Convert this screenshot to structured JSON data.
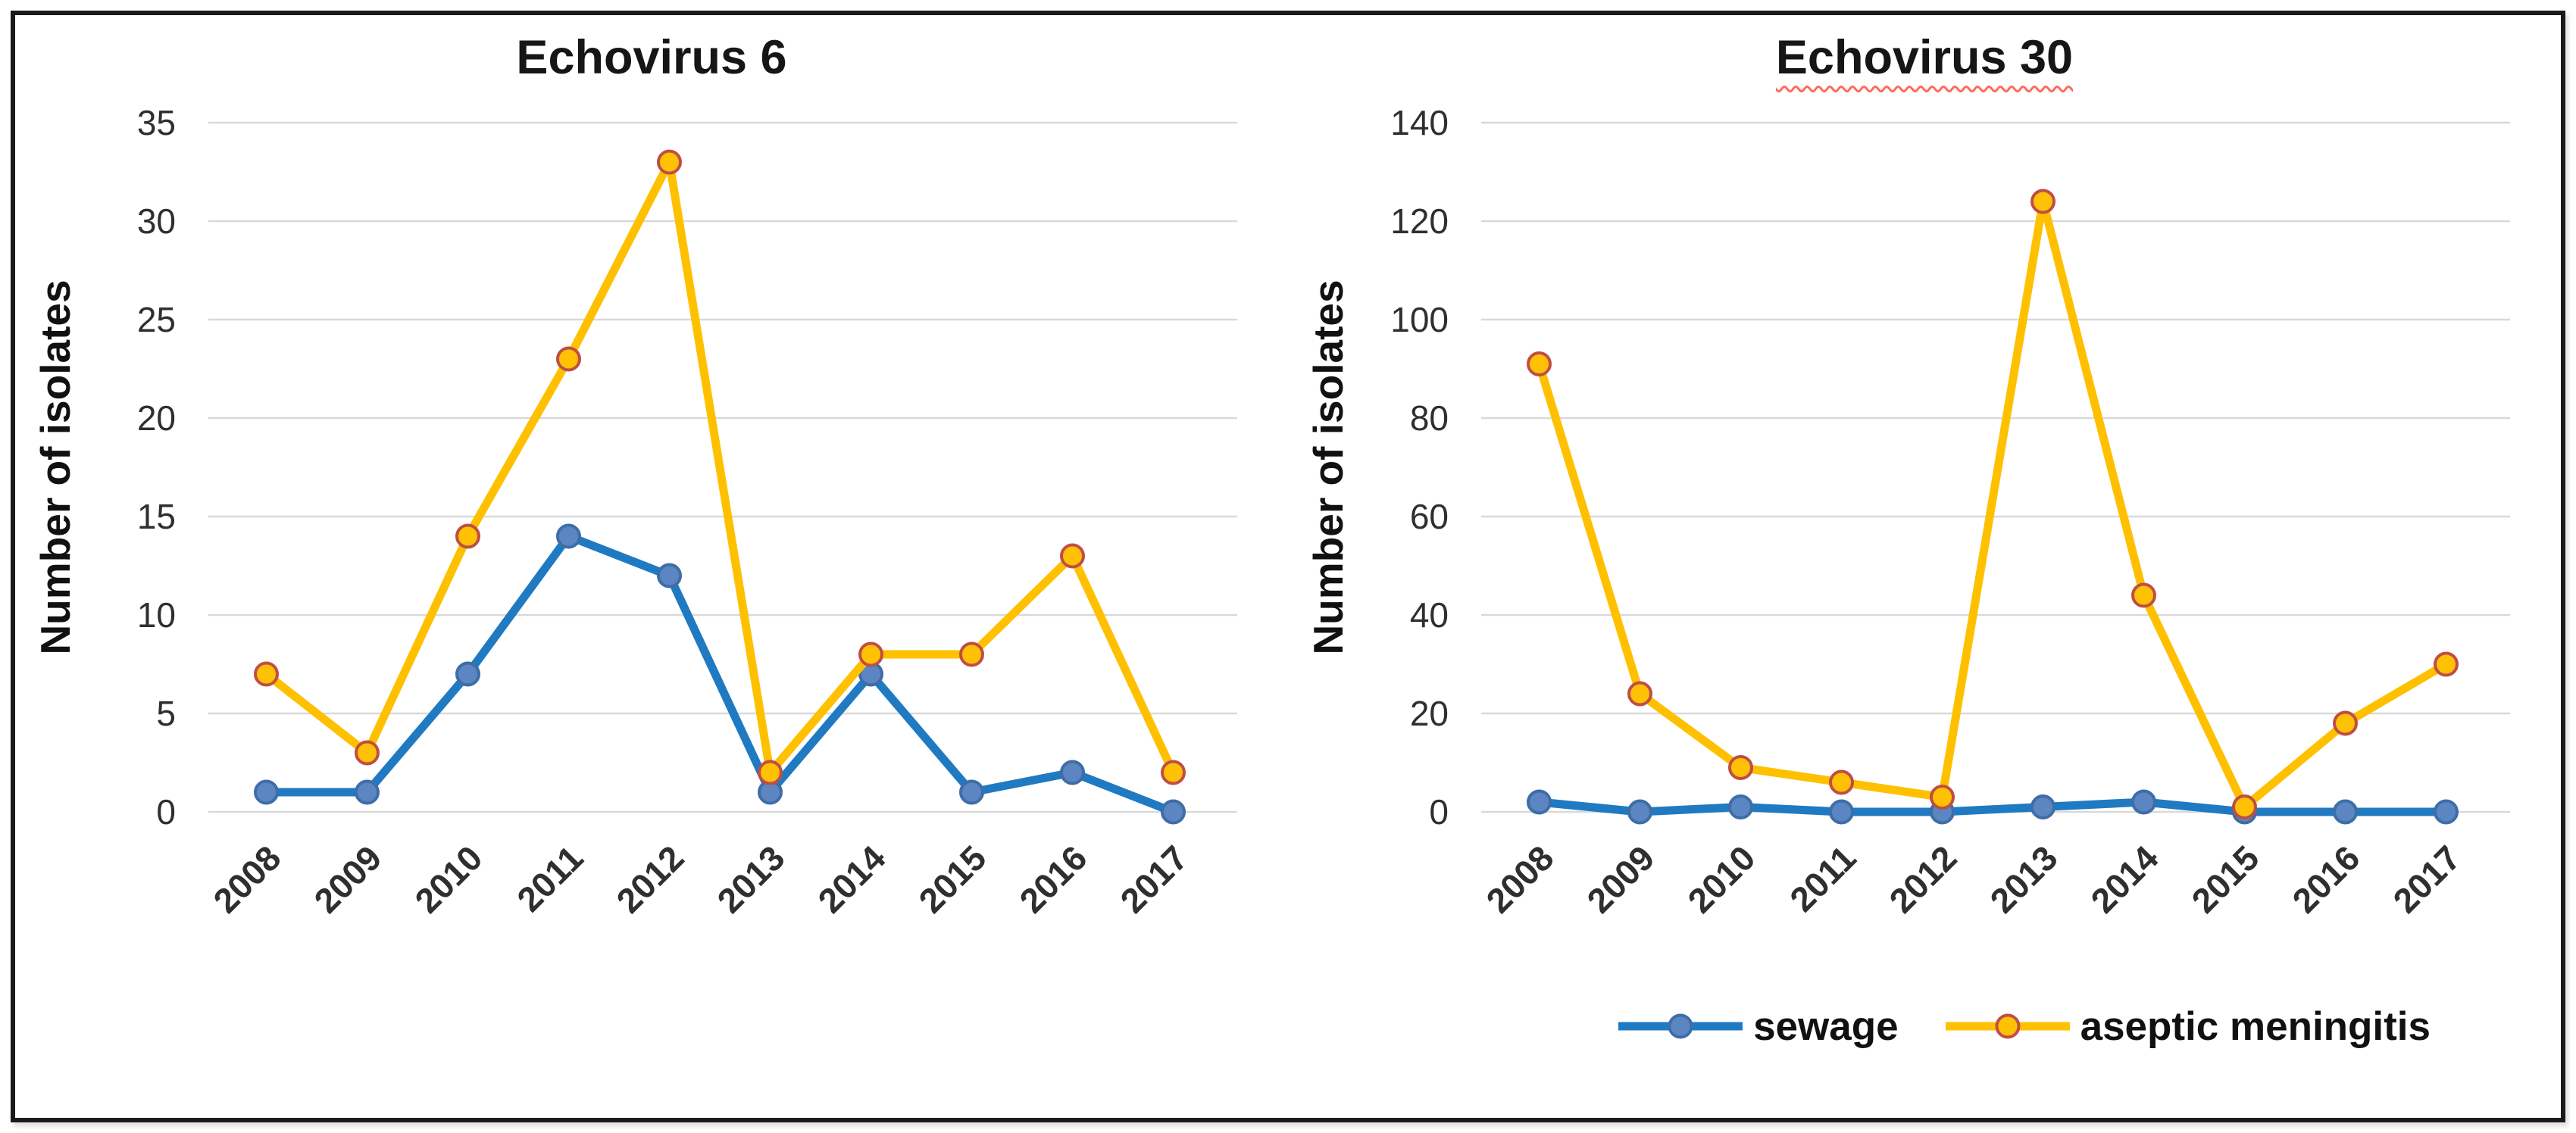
{
  "frame": {
    "border_color": "#1b1b1b",
    "background": "#ffffff"
  },
  "axis": {
    "gridline_color": "#d9d9d9",
    "tick_color": "#2f2f2f",
    "axis_title_color": "#111111"
  },
  "chart_data": [
    {
      "type": "line",
      "title": "Echovirus 6",
      "ylabel": "Number of isolates",
      "xlabel": "",
      "categories": [
        "2008",
        "2009",
        "2010",
        "2011",
        "2012",
        "2013",
        "2014",
        "2015",
        "2016",
        "2017"
      ],
      "ylim": [
        0,
        35
      ],
      "yticks": [
        0,
        5,
        10,
        15,
        20,
        25,
        30,
        35
      ],
      "grid": true,
      "legend_position": "none",
      "series": [
        {
          "name": "sewage",
          "values": [
            1,
            1,
            7,
            14,
            12,
            1,
            7,
            1,
            2,
            0
          ],
          "line_color": "#1f7ac2",
          "marker_fill": "#5b86c2",
          "marker_stroke": "#3e6da8"
        },
        {
          "name": "aseptic meningitis",
          "values": [
            7,
            3,
            14,
            23,
            33,
            2,
            8,
            8,
            13,
            2
          ],
          "line_color": "#ffc000",
          "marker_fill": "#ffc103",
          "marker_stroke": "#bf4e45"
        }
      ]
    },
    {
      "type": "line",
      "title": "Echovirus 30",
      "title_underline": {
        "style": "wavy",
        "color": "#ff6a5e"
      },
      "ylabel": "Number of isolates",
      "xlabel": "",
      "categories": [
        "2008",
        "2009",
        "2010",
        "2011",
        "2012",
        "2013",
        "2014",
        "2015",
        "2016",
        "2017"
      ],
      "ylim": [
        0,
        140
      ],
      "yticks": [
        0,
        20,
        40,
        60,
        80,
        100,
        120,
        140
      ],
      "grid": true,
      "legend_position": "bottom",
      "series": [
        {
          "name": "sewage",
          "values": [
            2,
            0,
            1,
            0,
            0,
            1,
            2,
            0,
            0,
            0
          ],
          "line_color": "#1f7ac2",
          "marker_fill": "#5b86c2",
          "marker_stroke": "#3e6da8"
        },
        {
          "name": "aseptic meningitis",
          "values": [
            91,
            24,
            9,
            6,
            3,
            124,
            44,
            1,
            18,
            30
          ],
          "line_color": "#ffc000",
          "marker_fill": "#ffc103",
          "marker_stroke": "#bf4e45"
        }
      ]
    }
  ]
}
